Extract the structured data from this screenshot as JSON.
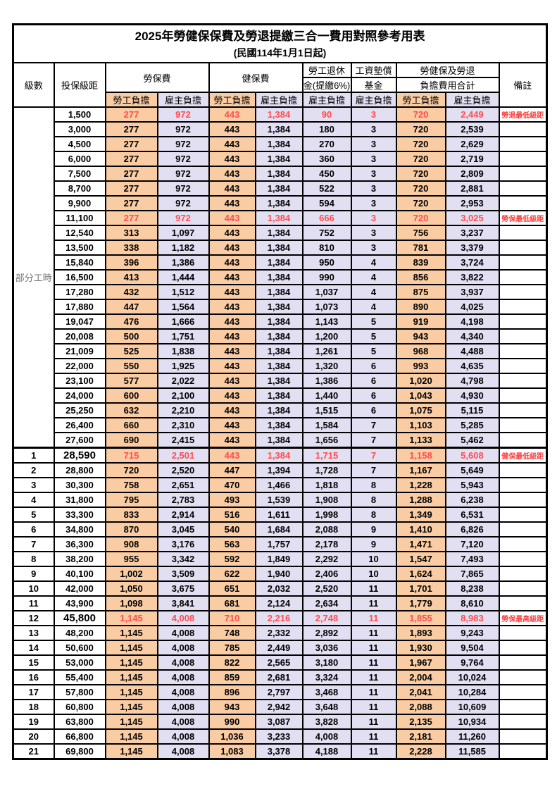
{
  "title": "2025年勞健保保費及勞退提繳三合一費用對照參考用表",
  "subtitle": "(民國114年1月1日起)",
  "colors": {
    "employee_share_bg": "#F9CCA4",
    "employer_share_bg": "#E2DFF2",
    "highlight_value_red": "#FF4D4D",
    "remark_red": "#FF4040",
    "part_time_gray": "#757575",
    "border_black": "#000000"
  },
  "header": {
    "col_level": "級數",
    "col_bracket": "投保級距",
    "group_labor": "勞保費",
    "group_health": "健保費",
    "group_pension_line1": "勞工退休",
    "group_pension_line2": "金(提繳6%)",
    "group_wage_line1": "工資墊償",
    "group_wage_line2": "基金",
    "group_total_line1": "勞健保及勞退",
    "group_total_line2": "負擔費用合計",
    "col_remark": "備註",
    "sub_employee": "勞工負擔",
    "sub_employer": "雇主負擔"
  },
  "part_time_label": "部分工時",
  "rows": [
    {
      "level": "",
      "bracket": "1,500",
      "values": [
        "277",
        "972",
        "443",
        "1,384",
        "90",
        "3",
        "720",
        "2,449"
      ],
      "remark": "勞退最低級距",
      "red": true,
      "bold": false
    },
    {
      "level": "",
      "bracket": "3,000",
      "values": [
        "277",
        "972",
        "443",
        "1,384",
        "180",
        "3",
        "720",
        "2,539"
      ],
      "remark": "",
      "red": false,
      "bold": false
    },
    {
      "level": "",
      "bracket": "4,500",
      "values": [
        "277",
        "972",
        "443",
        "1,384",
        "270",
        "3",
        "720",
        "2,629"
      ],
      "remark": "",
      "red": false,
      "bold": false
    },
    {
      "level": "",
      "bracket": "6,000",
      "values": [
        "277",
        "972",
        "443",
        "1,384",
        "360",
        "3",
        "720",
        "2,719"
      ],
      "remark": "",
      "red": false,
      "bold": false
    },
    {
      "level": "",
      "bracket": "7,500",
      "values": [
        "277",
        "972",
        "443",
        "1,384",
        "450",
        "3",
        "720",
        "2,809"
      ],
      "remark": "",
      "red": false,
      "bold": false
    },
    {
      "level": "",
      "bracket": "8,700",
      "values": [
        "277",
        "972",
        "443",
        "1,384",
        "522",
        "3",
        "720",
        "2,881"
      ],
      "remark": "",
      "red": false,
      "bold": false
    },
    {
      "level": "",
      "bracket": "9,900",
      "values": [
        "277",
        "972",
        "443",
        "1,384",
        "594",
        "3",
        "720",
        "2,953"
      ],
      "remark": "",
      "red": false,
      "bold": false
    },
    {
      "level": "",
      "bracket": "11,100",
      "values": [
        "277",
        "972",
        "443",
        "1,384",
        "666",
        "3",
        "720",
        "3,025"
      ],
      "remark": "勞保最低級距",
      "red": true,
      "bold": false
    },
    {
      "level": "",
      "bracket": "12,540",
      "values": [
        "313",
        "1,097",
        "443",
        "1,384",
        "752",
        "3",
        "756",
        "3,237"
      ],
      "remark": "",
      "red": false,
      "bold": false
    },
    {
      "level": "",
      "bracket": "13,500",
      "values": [
        "338",
        "1,182",
        "443",
        "1,384",
        "810",
        "3",
        "781",
        "3,379"
      ],
      "remark": "",
      "red": false,
      "bold": false
    },
    {
      "level": "",
      "bracket": "15,840",
      "values": [
        "396",
        "1,386",
        "443",
        "1,384",
        "950",
        "4",
        "839",
        "3,724"
      ],
      "remark": "",
      "red": false,
      "bold": false
    },
    {
      "level": "",
      "bracket": "16,500",
      "values": [
        "413",
        "1,444",
        "443",
        "1,384",
        "990",
        "4",
        "856",
        "3,822"
      ],
      "remark": "",
      "red": false,
      "bold": false
    },
    {
      "level": "",
      "bracket": "17,280",
      "values": [
        "432",
        "1,512",
        "443",
        "1,384",
        "1,037",
        "4",
        "875",
        "3,937"
      ],
      "remark": "",
      "red": false,
      "bold": false
    },
    {
      "level": "",
      "bracket": "17,880",
      "values": [
        "447",
        "1,564",
        "443",
        "1,384",
        "1,073",
        "4",
        "890",
        "4,025"
      ],
      "remark": "",
      "red": false,
      "bold": false
    },
    {
      "level": "",
      "bracket": "19,047",
      "values": [
        "476",
        "1,666",
        "443",
        "1,384",
        "1,143",
        "5",
        "919",
        "4,198"
      ],
      "remark": "",
      "red": false,
      "bold": false
    },
    {
      "level": "",
      "bracket": "20,008",
      "values": [
        "500",
        "1,751",
        "443",
        "1,384",
        "1,200",
        "5",
        "943",
        "4,340"
      ],
      "remark": "",
      "red": false,
      "bold": false
    },
    {
      "level": "",
      "bracket": "21,009",
      "values": [
        "525",
        "1,838",
        "443",
        "1,384",
        "1,261",
        "5",
        "968",
        "4,488"
      ],
      "remark": "",
      "red": false,
      "bold": false
    },
    {
      "level": "",
      "bracket": "22,000",
      "values": [
        "550",
        "1,925",
        "443",
        "1,384",
        "1,320",
        "6",
        "993",
        "4,635"
      ],
      "remark": "",
      "red": false,
      "bold": false
    },
    {
      "level": "",
      "bracket": "23,100",
      "values": [
        "577",
        "2,022",
        "443",
        "1,384",
        "1,386",
        "6",
        "1,020",
        "4,798"
      ],
      "remark": "",
      "red": false,
      "bold": false
    },
    {
      "level": "",
      "bracket": "24,000",
      "values": [
        "600",
        "2,100",
        "443",
        "1,384",
        "1,440",
        "6",
        "1,043",
        "4,930"
      ],
      "remark": "",
      "red": false,
      "bold": false
    },
    {
      "level": "",
      "bracket": "25,250",
      "values": [
        "632",
        "2,210",
        "443",
        "1,384",
        "1,515",
        "6",
        "1,075",
        "5,115"
      ],
      "remark": "",
      "red": false,
      "bold": false
    },
    {
      "level": "",
      "bracket": "26,400",
      "values": [
        "660",
        "2,310",
        "443",
        "1,384",
        "1,584",
        "7",
        "1,103",
        "5,285"
      ],
      "remark": "",
      "red": false,
      "bold": false
    },
    {
      "level": "",
      "bracket": "27,600",
      "values": [
        "690",
        "2,415",
        "443",
        "1,384",
        "1,656",
        "7",
        "1,133",
        "5,462"
      ],
      "remark": "",
      "red": false,
      "bold": false
    },
    {
      "level": "1",
      "bracket": "28,590",
      "values": [
        "715",
        "2,501",
        "443",
        "1,384",
        "1,715",
        "7",
        "1,158",
        "5,608"
      ],
      "remark": "健保最低級距",
      "red": true,
      "bold": true
    },
    {
      "level": "2",
      "bracket": "28,800",
      "values": [
        "720",
        "2,520",
        "447",
        "1,394",
        "1,728",
        "7",
        "1,167",
        "5,649"
      ],
      "remark": "",
      "red": false,
      "bold": false
    },
    {
      "level": "3",
      "bracket": "30,300",
      "values": [
        "758",
        "2,651",
        "470",
        "1,466",
        "1,818",
        "8",
        "1,228",
        "5,943"
      ],
      "remark": "",
      "red": false,
      "bold": false
    },
    {
      "level": "4",
      "bracket": "31,800",
      "values": [
        "795",
        "2,783",
        "493",
        "1,539",
        "1,908",
        "8",
        "1,288",
        "6,238"
      ],
      "remark": "",
      "red": false,
      "bold": false
    },
    {
      "level": "5",
      "bracket": "33,300",
      "values": [
        "833",
        "2,914",
        "516",
        "1,611",
        "1,998",
        "8",
        "1,349",
        "6,531"
      ],
      "remark": "",
      "red": false,
      "bold": false
    },
    {
      "level": "6",
      "bracket": "34,800",
      "values": [
        "870",
        "3,045",
        "540",
        "1,684",
        "2,088",
        "9",
        "1,410",
        "6,826"
      ],
      "remark": "",
      "red": false,
      "bold": false
    },
    {
      "level": "7",
      "bracket": "36,300",
      "values": [
        "908",
        "3,176",
        "563",
        "1,757",
        "2,178",
        "9",
        "1,471",
        "7,120"
      ],
      "remark": "",
      "red": false,
      "bold": false
    },
    {
      "level": "8",
      "bracket": "38,200",
      "values": [
        "955",
        "3,342",
        "592",
        "1,849",
        "2,292",
        "10",
        "1,547",
        "7,493"
      ],
      "remark": "",
      "red": false,
      "bold": false
    },
    {
      "level": "9",
      "bracket": "40,100",
      "values": [
        "1,002",
        "3,509",
        "622",
        "1,940",
        "2,406",
        "10",
        "1,624",
        "7,865"
      ],
      "remark": "",
      "red": false,
      "bold": false
    },
    {
      "level": "10",
      "bracket": "42,000",
      "values": [
        "1,050",
        "3,675",
        "651",
        "2,032",
        "2,520",
        "11",
        "1,701",
        "8,238"
      ],
      "remark": "",
      "red": false,
      "bold": false
    },
    {
      "level": "11",
      "bracket": "43,900",
      "values": [
        "1,098",
        "3,841",
        "681",
        "2,124",
        "2,634",
        "11",
        "1,779",
        "8,610"
      ],
      "remark": "",
      "red": false,
      "bold": false
    },
    {
      "level": "12",
      "bracket": "45,800",
      "values": [
        "1,145",
        "4,008",
        "710",
        "2,216",
        "2,748",
        "11",
        "1,855",
        "8,983"
      ],
      "remark": "勞保最高級距",
      "red": true,
      "bold": true
    },
    {
      "level": "13",
      "bracket": "48,200",
      "values": [
        "1,145",
        "4,008",
        "748",
        "2,332",
        "2,892",
        "11",
        "1,893",
        "9,243"
      ],
      "remark": "",
      "red": false,
      "bold": false
    },
    {
      "level": "14",
      "bracket": "50,600",
      "values": [
        "1,145",
        "4,008",
        "785",
        "2,449",
        "3,036",
        "11",
        "1,930",
        "9,504"
      ],
      "remark": "",
      "red": false,
      "bold": false
    },
    {
      "level": "15",
      "bracket": "53,000",
      "values": [
        "1,145",
        "4,008",
        "822",
        "2,565",
        "3,180",
        "11",
        "1,967",
        "9,764"
      ],
      "remark": "",
      "red": false,
      "bold": false
    },
    {
      "level": "16",
      "bracket": "55,400",
      "values": [
        "1,145",
        "4,008",
        "859",
        "2,681",
        "3,324",
        "11",
        "2,004",
        "10,024"
      ],
      "remark": "",
      "red": false,
      "bold": false
    },
    {
      "level": "17",
      "bracket": "57,800",
      "values": [
        "1,145",
        "4,008",
        "896",
        "2,797",
        "3,468",
        "11",
        "2,041",
        "10,284"
      ],
      "remark": "",
      "red": false,
      "bold": false
    },
    {
      "level": "18",
      "bracket": "60,800",
      "values": [
        "1,145",
        "4,008",
        "943",
        "2,942",
        "3,648",
        "11",
        "2,088",
        "10,609"
      ],
      "remark": "",
      "red": false,
      "bold": false
    },
    {
      "level": "19",
      "bracket": "63,800",
      "values": [
        "1,145",
        "4,008",
        "990",
        "3,087",
        "3,828",
        "11",
        "2,135",
        "10,934"
      ],
      "remark": "",
      "red": false,
      "bold": false
    },
    {
      "level": "20",
      "bracket": "66,800",
      "values": [
        "1,145",
        "4,008",
        "1,036",
        "3,233",
        "4,008",
        "11",
        "2,181",
        "11,260"
      ],
      "remark": "",
      "red": false,
      "bold": false
    },
    {
      "level": "21",
      "bracket": "69,800",
      "values": [
        "1,145",
        "4,008",
        "1,083",
        "3,378",
        "4,188",
        "11",
        "2,228",
        "11,585"
      ],
      "remark": "",
      "red": false,
      "bold": false
    }
  ]
}
